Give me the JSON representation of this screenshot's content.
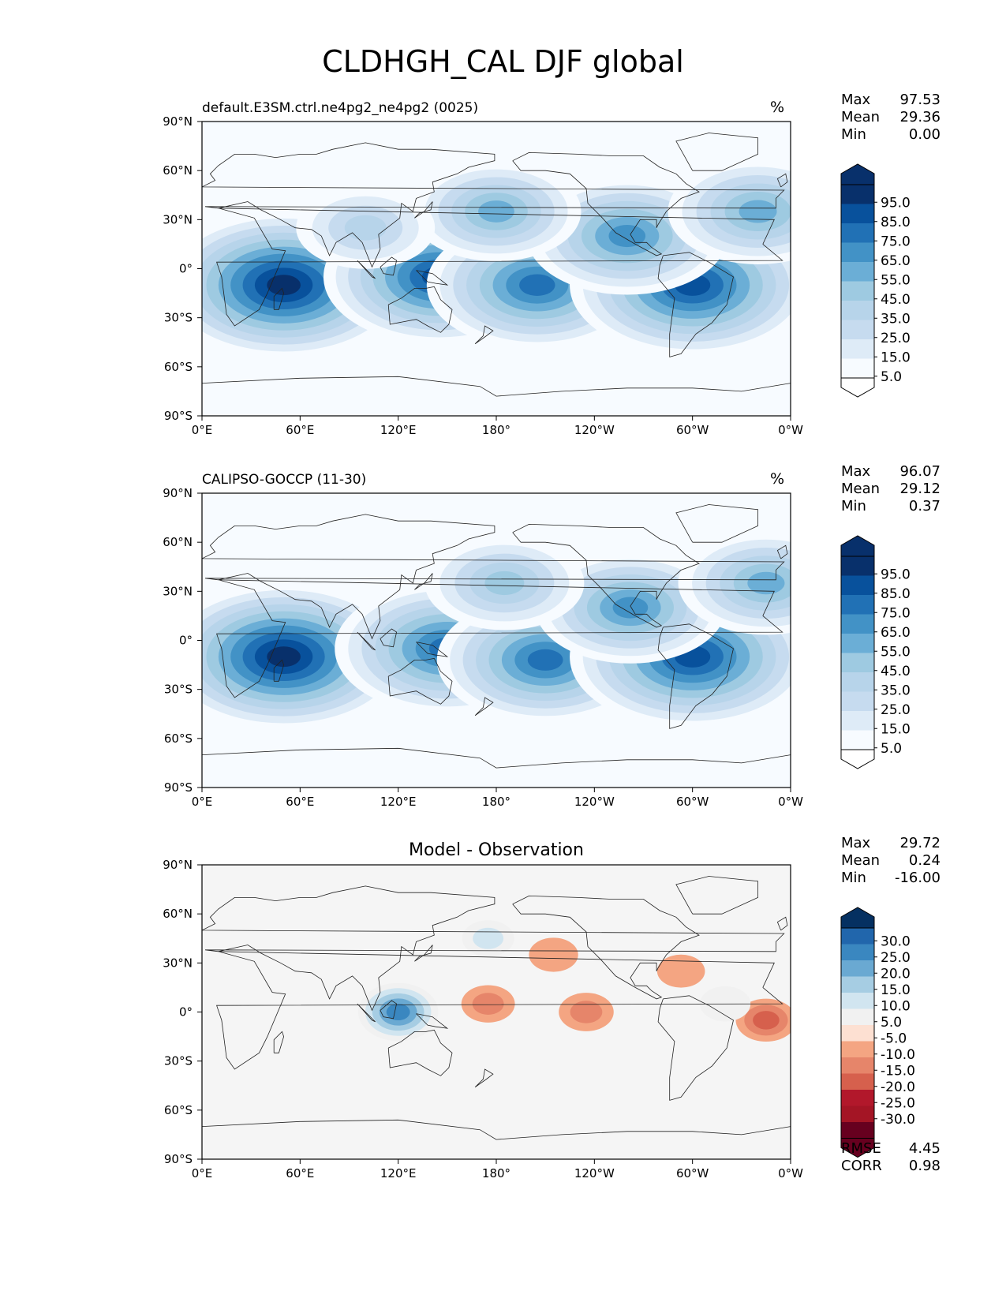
{
  "figure": {
    "title": "CLDHGH_CAL DJF global"
  },
  "chart_data": [
    {
      "type": "heatmap",
      "title": "default.E3SM.ctrl.ne4pg2_ne4pg2 (0025)",
      "units": "%",
      "xticks": [
        "0°E",
        "60°E",
        "120°E",
        "180°",
        "120°W",
        "60°W",
        "0°W"
      ],
      "yticks": [
        "90°N",
        "60°N",
        "30°N",
        "0°",
        "30°S",
        "60°S",
        "90°S"
      ],
      "xlim": [
        0,
        360
      ],
      "ylim": [
        -90,
        90
      ],
      "stats": {
        "Max": "97.53",
        "Mean": "29.36",
        "Min": "0.00"
      },
      "colorbar": {
        "labels": [
          "95.0",
          "85.0",
          "75.0",
          "65.0",
          "55.0",
          "45.0",
          "35.0",
          "25.0",
          "15.0",
          "5.0"
        ],
        "colors": [
          "#08306b",
          "#08519c",
          "#2171b5",
          "#4292c6",
          "#6baed6",
          "#9ecae1",
          "#b7d4ea",
          "#c6dbef",
          "#deebf7",
          "#f7fbff"
        ],
        "extend_top": "#08306b",
        "extend_bottom": "#ffffff"
      },
      "background": "#f7fbff",
      "features": [
        {
          "lon": 50,
          "lat": -10,
          "value": 95
        },
        {
          "lon": 145,
          "lat": -5,
          "value": 85
        },
        {
          "lon": 205,
          "lat": -10,
          "value": 80
        },
        {
          "lon": 300,
          "lat": -10,
          "value": 92
        },
        {
          "lon": 260,
          "lat": 20,
          "value": 70
        },
        {
          "lon": 340,
          "lat": 35,
          "value": 60
        },
        {
          "lon": 180,
          "lat": 35,
          "value": 55
        },
        {
          "lon": 100,
          "lat": 25,
          "value": 40
        }
      ]
    },
    {
      "type": "heatmap",
      "title": "CALIPSO-GOCCP (11-30)",
      "units": "%",
      "xticks": [
        "0°E",
        "60°E",
        "120°E",
        "180°",
        "120°W",
        "60°W",
        "0°W"
      ],
      "yticks": [
        "90°N",
        "60°N",
        "30°N",
        "0°",
        "30°S",
        "60°S",
        "90°S"
      ],
      "xlim": [
        0,
        360
      ],
      "ylim": [
        -90,
        90
      ],
      "stats": {
        "Max": "96.07",
        "Mean": "29.12",
        "Min": "0.37"
      },
      "colorbar": {
        "labels": [
          "95.0",
          "85.0",
          "75.0",
          "65.0",
          "55.0",
          "45.0",
          "35.0",
          "25.0",
          "15.0",
          "5.0"
        ],
        "colors": [
          "#08306b",
          "#08519c",
          "#2171b5",
          "#4292c6",
          "#6baed6",
          "#9ecae1",
          "#b7d4ea",
          "#c6dbef",
          "#deebf7",
          "#f7fbff"
        ],
        "extend_top": "#08306b",
        "extend_bottom": "#ffffff"
      },
      "background": "#f7fbff",
      "features": [
        {
          "lon": 50,
          "lat": -10,
          "value": 95
        },
        {
          "lon": 150,
          "lat": -5,
          "value": 82
        },
        {
          "lon": 210,
          "lat": -12,
          "value": 78
        },
        {
          "lon": 300,
          "lat": -10,
          "value": 92
        },
        {
          "lon": 262,
          "lat": 20,
          "value": 65
        },
        {
          "lon": 345,
          "lat": 35,
          "value": 58
        },
        {
          "lon": 185,
          "lat": 35,
          "value": 50
        }
      ]
    },
    {
      "type": "heatmap",
      "title": "Model - Observation",
      "units": "",
      "xticks": [
        "0°E",
        "60°E",
        "120°E",
        "180°",
        "120°W",
        "60°W",
        "0°W"
      ],
      "yticks": [
        "90°N",
        "60°N",
        "30°N",
        "0°",
        "30°S",
        "60°S",
        "90°S"
      ],
      "xlim": [
        0,
        360
      ],
      "ylim": [
        -90,
        90
      ],
      "stats": {
        "Max": "29.72",
        "Mean": "0.24",
        "Min": "-16.00"
      },
      "metrics": {
        "RMSE": "4.45",
        "CORR": "0.98"
      },
      "colorbar": {
        "labels": [
          "30.0",
          "25.0",
          "20.0",
          "15.0",
          "10.0",
          "5.0",
          "-5.0",
          "-10.0",
          "-15.0",
          "-20.0",
          "-25.0",
          "-30.0"
        ],
        "colors": [
          "#2166ac",
          "#3a87c0",
          "#6aa9d2",
          "#a6cde3",
          "#d1e5f0",
          "#f1f1f1",
          "#fde0d2",
          "#f4a582",
          "#e6856a",
          "#d6604d",
          "#b2182b",
          "#a41525",
          "#67001f"
        ],
        "extend_top": "#053061",
        "extend_bottom": "#67001f"
      },
      "background": "#f5f5f5",
      "features": [
        {
          "lon": 120,
          "lat": 0,
          "value": 29.7
        },
        {
          "lon": 175,
          "lat": 45,
          "value": 10
        },
        {
          "lon": 215,
          "lat": 35,
          "value": -8
        },
        {
          "lon": 293,
          "lat": 25,
          "value": -7
        },
        {
          "lon": 175,
          "lat": 5,
          "value": -11
        },
        {
          "lon": 235,
          "lat": 0,
          "value": -12
        },
        {
          "lon": 345,
          "lat": -5,
          "value": -16
        },
        {
          "lon": 320,
          "lat": 5,
          "value": 9
        }
      ]
    }
  ]
}
